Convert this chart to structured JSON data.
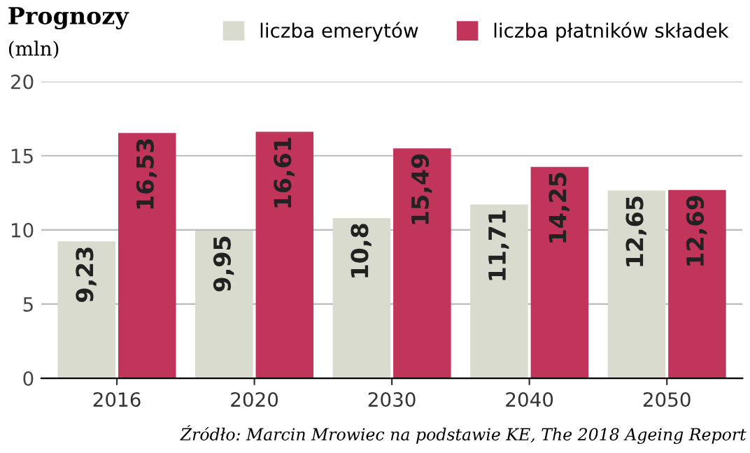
{
  "chart_data": {
    "type": "bar",
    "title": "Prognozy",
    "subtitle": "(mln)",
    "categories": [
      "2016",
      "2020",
      "2030",
      "2040",
      "2050"
    ],
    "series": [
      {
        "name": "liczba emerytów",
        "color": "#d9dbcf",
        "values": [
          9.23,
          9.95,
          10.8,
          11.71,
          12.65
        ],
        "value_labels": [
          "9,23",
          "9,95",
          "10,8",
          "11,71",
          "12,65"
        ]
      },
      {
        "name": "liczba płatników składek",
        "color": "#c1355a",
        "values": [
          16.53,
          16.61,
          15.49,
          14.25,
          12.69
        ],
        "value_labels": [
          "16,53",
          "16,61",
          "15,49",
          "14,25",
          "12,69"
        ]
      }
    ],
    "ylim": [
      0,
      20
    ],
    "yticks": [
      0,
      5,
      10,
      15,
      20
    ],
    "grid": "y",
    "legend": "top right",
    "annotations": [
      "Źródło: Marcin Mrowiec na podstawie KE, The 2018 Ageing Report"
    ]
  }
}
